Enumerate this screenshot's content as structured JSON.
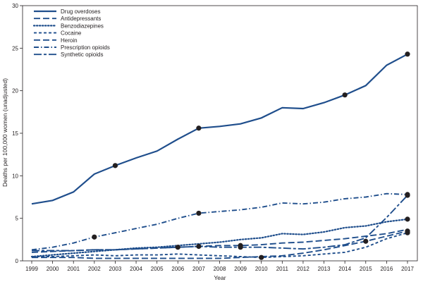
{
  "colors": {
    "series": "#1f4e8c",
    "axis": "#231f20",
    "marker": "#231f20",
    "background": "#ffffff"
  },
  "chart_data": {
    "type": "line",
    "title": "",
    "xlabel": "Year",
    "ylabel": "Deaths per 100,000 women (unadjusted)",
    "x": [
      1999,
      2000,
      2001,
      2002,
      2003,
      2004,
      2005,
      2006,
      2007,
      2008,
      2009,
      2010,
      2011,
      2012,
      2013,
      2014,
      2015,
      2016,
      2017
    ],
    "x_tick_labels": [
      "1999",
      "2000",
      "2001",
      "2002",
      "2003",
      "2004",
      "2005",
      "2006",
      "2007",
      "2008",
      "2009",
      "2010",
      "2011",
      "2012",
      "2013",
      "2014",
      "2015",
      "2016",
      "2017"
    ],
    "ylim": [
      0,
      30
    ],
    "y_ticks": [
      0,
      5,
      10,
      15,
      20,
      25,
      30
    ],
    "y_tick_labels": [
      "0",
      "5",
      "10",
      "15",
      "20",
      "25",
      "30"
    ],
    "grid": false,
    "legend_position": "top-left",
    "series": [
      {
        "name": "Drug overdoses",
        "style": "solid",
        "values": [
          6.7,
          7.1,
          8.1,
          10.2,
          11.2,
          12.1,
          12.9,
          14.3,
          15.6,
          15.8,
          16.1,
          16.8,
          18.0,
          17.9,
          18.6,
          19.5,
          20.6,
          23.0,
          24.3
        ],
        "markers": [
          2003,
          2007,
          2014,
          2017
        ]
      },
      {
        "name": "Antidepressants",
        "style": "long-dash",
        "values": [
          1.0,
          1.1,
          1.2,
          1.3,
          1.3,
          1.4,
          1.5,
          1.6,
          1.7,
          1.8,
          1.8,
          1.9,
          2.1,
          2.2,
          2.4,
          2.6,
          2.9,
          3.2,
          3.7
        ],
        "markers": [
          2007,
          2009
        ]
      },
      {
        "name": "Benzodiazepines",
        "style": "dot",
        "values": [
          0.5,
          0.7,
          0.9,
          1.1,
          1.3,
          1.5,
          1.6,
          1.8,
          2.0,
          2.2,
          2.5,
          2.7,
          3.2,
          3.1,
          3.4,
          3.9,
          4.1,
          4.6,
          4.9
        ],
        "markers": [
          2017
        ]
      },
      {
        "name": "Cocaine",
        "style": "short-dash",
        "values": [
          0.5,
          0.5,
          0.6,
          0.7,
          0.6,
          0.7,
          0.7,
          0.8,
          0.7,
          0.6,
          0.5,
          0.4,
          0.5,
          0.6,
          0.8,
          1.0,
          1.6,
          2.6,
          3.3
        ],
        "markers": [
          2010,
          2017
        ]
      },
      {
        "name": "Heroin",
        "style": "long-dash",
        "values": [
          0.4,
          0.4,
          0.4,
          0.3,
          0.3,
          0.3,
          0.3,
          0.3,
          0.3,
          0.3,
          0.4,
          0.5,
          0.6,
          0.9,
          1.3,
          1.8,
          2.3,
          2.9,
          3.5
        ],
        "markers": [
          2015,
          2017
        ]
      },
      {
        "name": "Prescription opioids",
        "style": "dash-dot",
        "values": [
          1.3,
          1.6,
          2.1,
          2.8,
          3.3,
          3.8,
          4.3,
          5.0,
          5.6,
          5.8,
          6.0,
          6.3,
          6.8,
          6.7,
          6.9,
          7.3,
          7.5,
          7.9,
          7.8
        ],
        "markers": [
          2002,
          2007,
          2017
        ]
      },
      {
        "name": "Synthetic opioids",
        "style": "long-short",
        "values": [
          1.2,
          1.2,
          1.2,
          1.3,
          1.3,
          1.4,
          1.5,
          1.6,
          1.7,
          1.6,
          1.6,
          1.6,
          1.5,
          1.4,
          1.6,
          1.9,
          2.7,
          5.1,
          7.7
        ],
        "markers": [
          2006,
          2009,
          2017
        ]
      }
    ]
  }
}
